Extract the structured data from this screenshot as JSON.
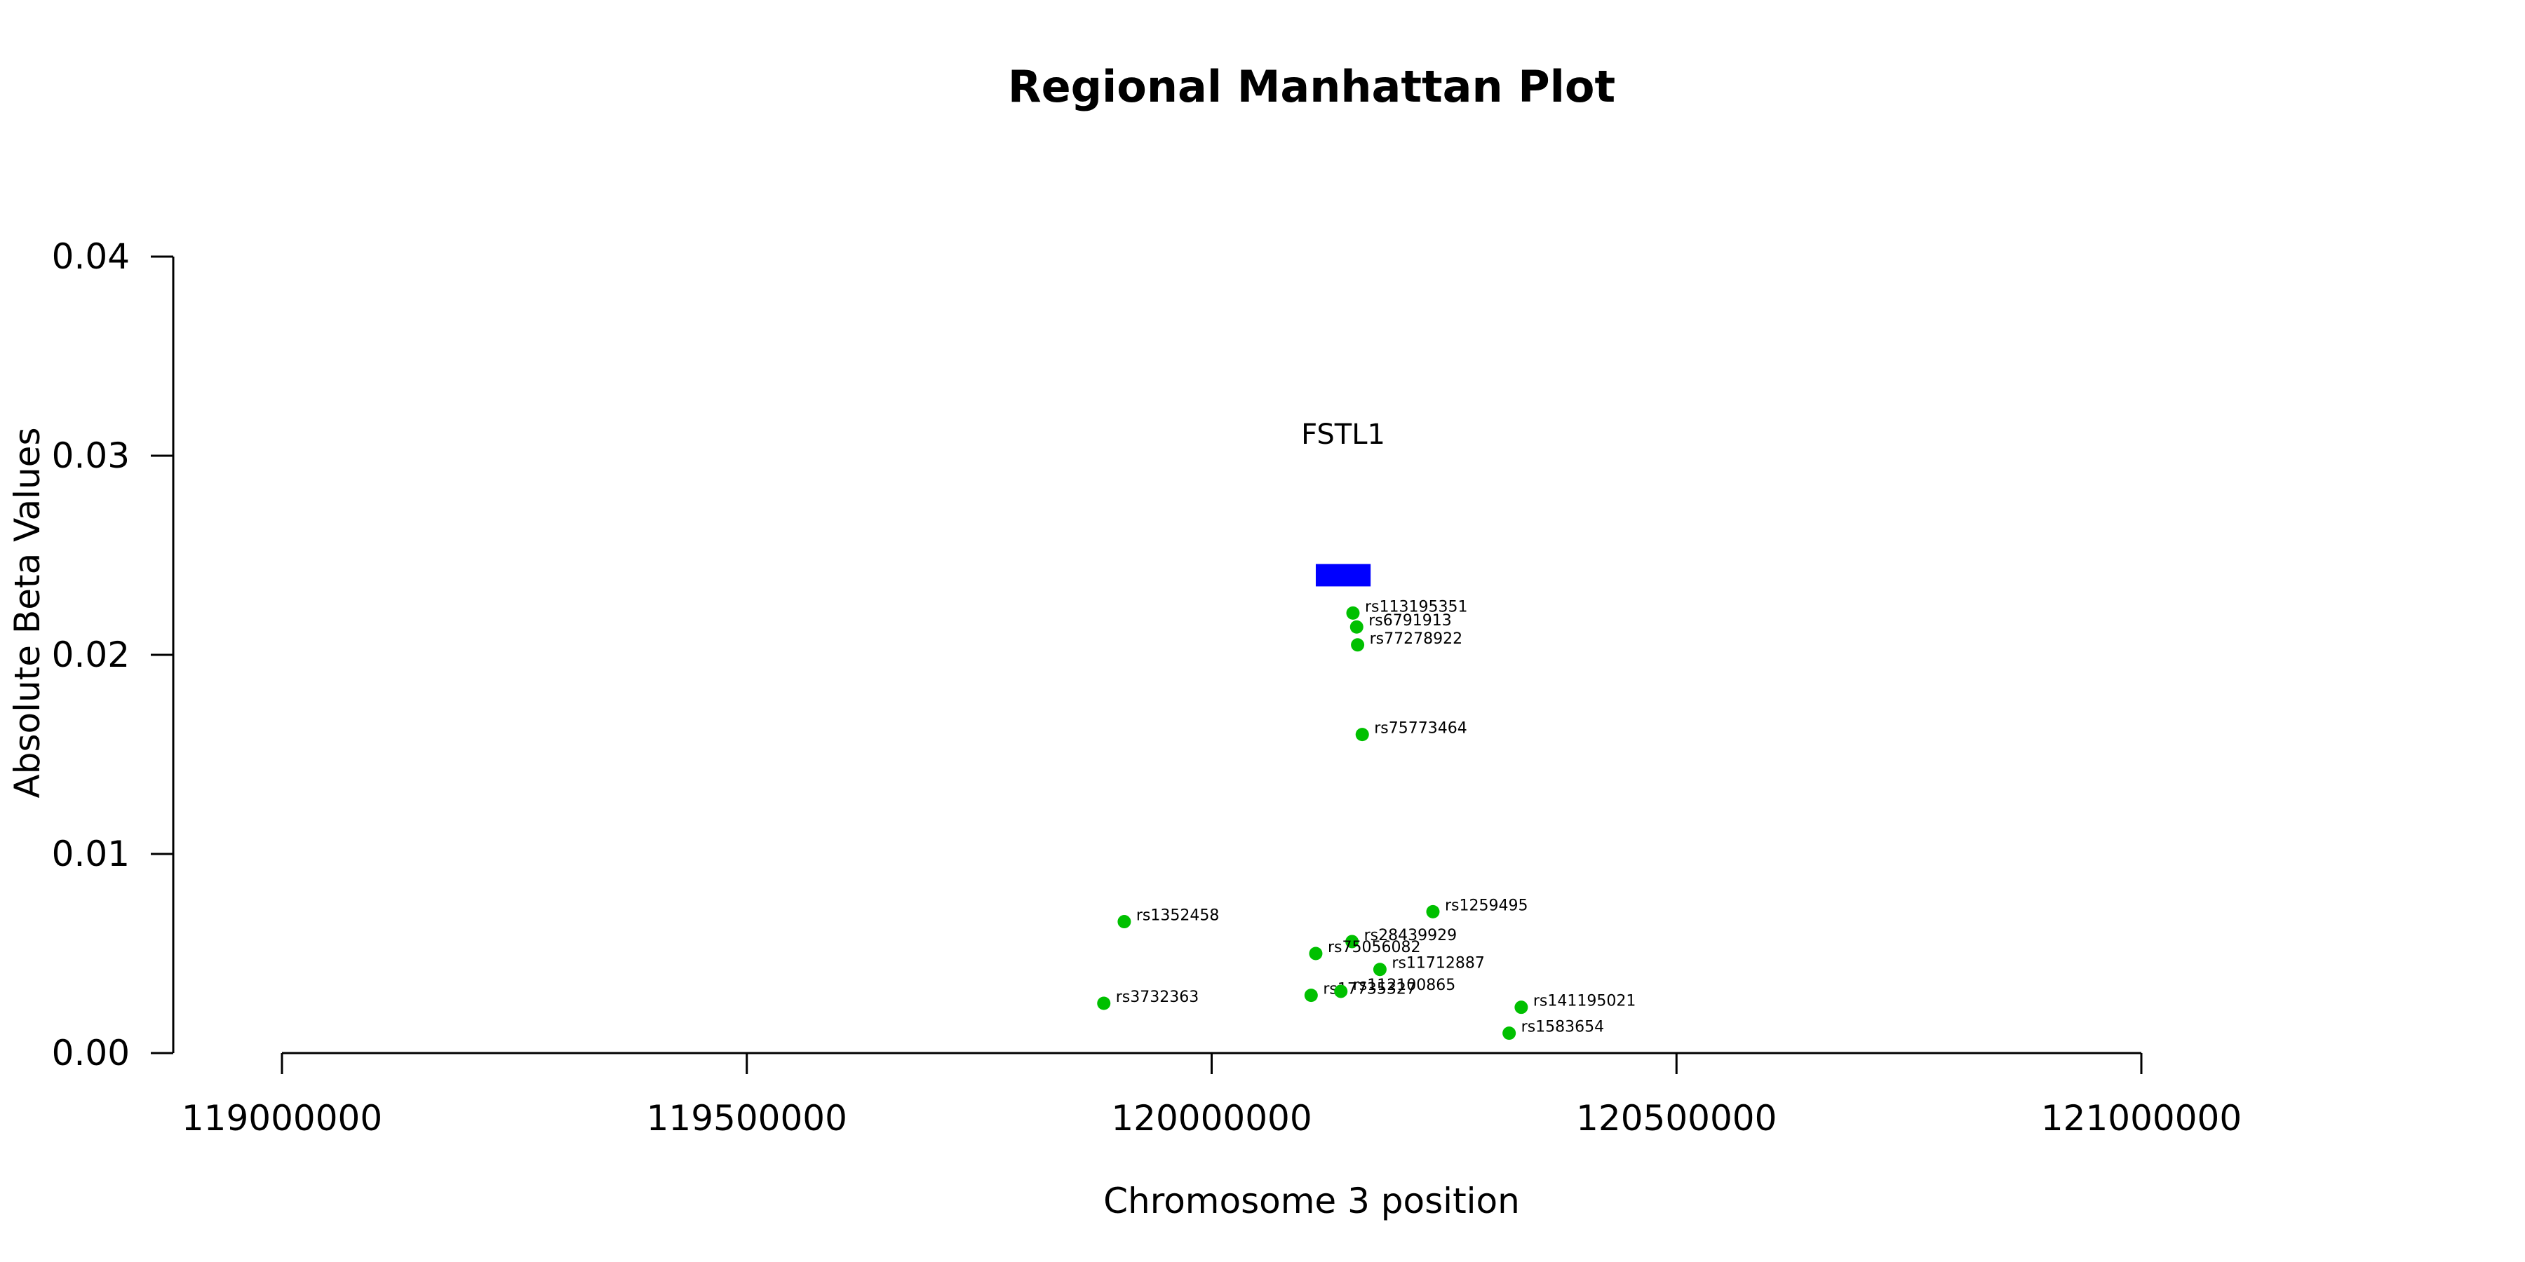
{
  "chart_data": {
    "type": "scatter",
    "title": "Regional Manhattan Plot",
    "xlabel": "Chromosome 3 position",
    "ylabel": "Absolute Beta Values",
    "xlim": [
      119000000,
      121000000
    ],
    "ylim": [
      0,
      0.04
    ],
    "x_ticks": [
      119000000,
      119500000,
      120000000,
      120500000,
      121000000
    ],
    "x_tick_labels": [
      "119000000",
      "119500000",
      "120000000",
      "120500000",
      "121000000"
    ],
    "y_ticks": [
      0,
      0.01,
      0.02,
      0.03,
      0.04
    ],
    "y_tick_labels": [
      "0.00",
      "0.01",
      "0.02",
      "0.03",
      "0.04"
    ],
    "grid": false,
    "colors": {
      "points": "#00c000",
      "gene": "#0000ff",
      "axis": "#000000"
    },
    "gene": {
      "name": "FSTL1",
      "start": 120112000,
      "end": 120171000,
      "y": 0.024,
      "label_y": 0.0311
    },
    "points": [
      {
        "label": "rs113195351",
        "x": 120152000,
        "y": 0.0221
      },
      {
        "label": "rs6791913",
        "x": 120156000,
        "y": 0.0214
      },
      {
        "label": "rs77278922",
        "x": 120157000,
        "y": 0.0205
      },
      {
        "label": "rs75773464",
        "x": 120162000,
        "y": 0.016
      },
      {
        "label": "rs1259495",
        "x": 120238000,
        "y": 0.0071
      },
      {
        "label": "rs1352458",
        "x": 119906000,
        "y": 0.0066
      },
      {
        "label": "rs28439929",
        "x": 120151000,
        "y": 0.0056
      },
      {
        "label": "rs75056082",
        "x": 120112000,
        "y": 0.005
      },
      {
        "label": "rs11712887",
        "x": 120181000,
        "y": 0.0042
      },
      {
        "label": "rs17735327",
        "x": 120107000,
        "y": 0.0029
      },
      {
        "label": "rs112100865",
        "x": 120139000,
        "y": 0.0031
      },
      {
        "label": "rs141195021",
        "x": 120333000,
        "y": 0.0023
      },
      {
        "label": "rs3732363",
        "x": 119884000,
        "y": 0.0025
      },
      {
        "label": "rs1583654",
        "x": 120320000,
        "y": 0.001
      }
    ]
  }
}
